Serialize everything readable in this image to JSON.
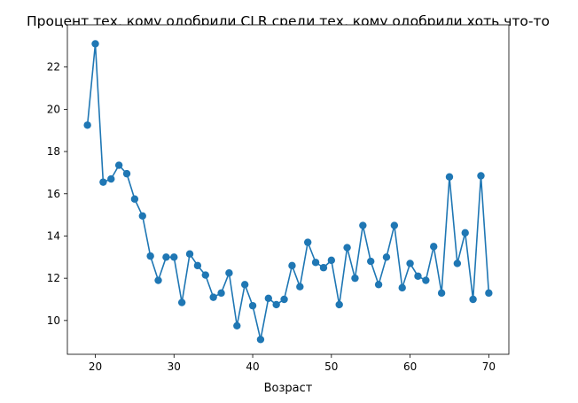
{
  "chart_data": {
    "type": "line",
    "title": "Процент тех, кому одобрили CLR среди тех, кому одобрили хоть что-то",
    "xlabel": "Возраст",
    "ylabel": "",
    "xlim": [
      16.45,
      72.55
    ],
    "ylim": [
      8.4,
      24.0
    ],
    "xticks": [
      20,
      30,
      40,
      50,
      60,
      70
    ],
    "yticks": [
      10,
      12,
      14,
      16,
      18,
      20,
      22
    ],
    "grid": false,
    "series": [
      {
        "color": "#1f77b4",
        "marker": "circle",
        "x": [
          19,
          20,
          21,
          22,
          23,
          24,
          25,
          26,
          27,
          28,
          29,
          30,
          31,
          32,
          33,
          34,
          35,
          36,
          37,
          38,
          39,
          40,
          41,
          42,
          43,
          44,
          45,
          46,
          47,
          48,
          49,
          50,
          51,
          52,
          53,
          54,
          55,
          56,
          57,
          58,
          59,
          60,
          61,
          62,
          63,
          64,
          65,
          66,
          67,
          68,
          69,
          70
        ],
        "y": [
          19.25,
          23.1,
          16.55,
          16.7,
          17.35,
          16.95,
          15.75,
          14.95,
          13.05,
          11.9,
          13.0,
          13.0,
          10.85,
          13.15,
          12.6,
          12.15,
          11.1,
          11.3,
          12.25,
          9.75,
          11.7,
          10.7,
          9.1,
          11.05,
          10.75,
          11.0,
          12.6,
          11.6,
          13.7,
          12.75,
          12.5,
          12.85,
          10.75,
          13.45,
          12.0,
          14.5,
          12.8,
          11.7,
          13.0,
          14.5,
          11.55,
          12.7,
          12.1,
          11.9,
          13.5,
          11.3,
          16.8,
          12.7,
          14.15,
          11.0,
          16.85,
          11.3
        ]
      }
    ]
  }
}
